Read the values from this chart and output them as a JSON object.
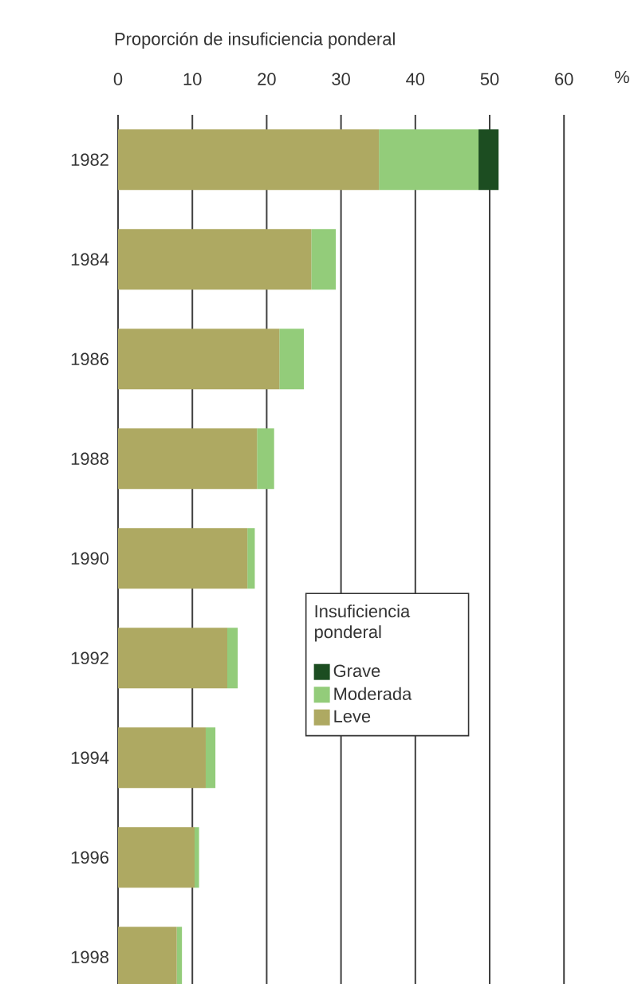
{
  "chart_data": {
    "type": "bar",
    "orientation": "horizontal",
    "stacked": true,
    "xlabel": "Proporción de insuficiencia ponderal",
    "categories": [
      "1982",
      "1984",
      "1986",
      "1988",
      "1990",
      "1992",
      "1994",
      "1996",
      "1998"
    ],
    "series": [
      {
        "name": "Leve",
        "color": "#aea962",
        "values": [
          35.1,
          26.0,
          21.7,
          18.7,
          17.4,
          14.7,
          11.8,
          10.3,
          7.9
        ]
      },
      {
        "name": "Moderada",
        "color": "#93cc7a",
        "values": [
          13.4,
          3.3,
          3.3,
          2.3,
          1.0,
          1.4,
          1.3,
          0.6,
          0.7
        ]
      },
      {
        "name": "Grave",
        "color": "#1c4d21",
        "values": [
          2.7,
          null,
          null,
          null,
          null,
          null,
          null,
          null,
          null
        ]
      }
    ],
    "xlim": [
      0,
      60
    ],
    "xticks": [
      0,
      10,
      20,
      30,
      40,
      50,
      60
    ],
    "grid": "x",
    "legend": "center",
    "legend_title": "Insuficiencia ponderal",
    "annotations": [
      "%"
    ]
  }
}
